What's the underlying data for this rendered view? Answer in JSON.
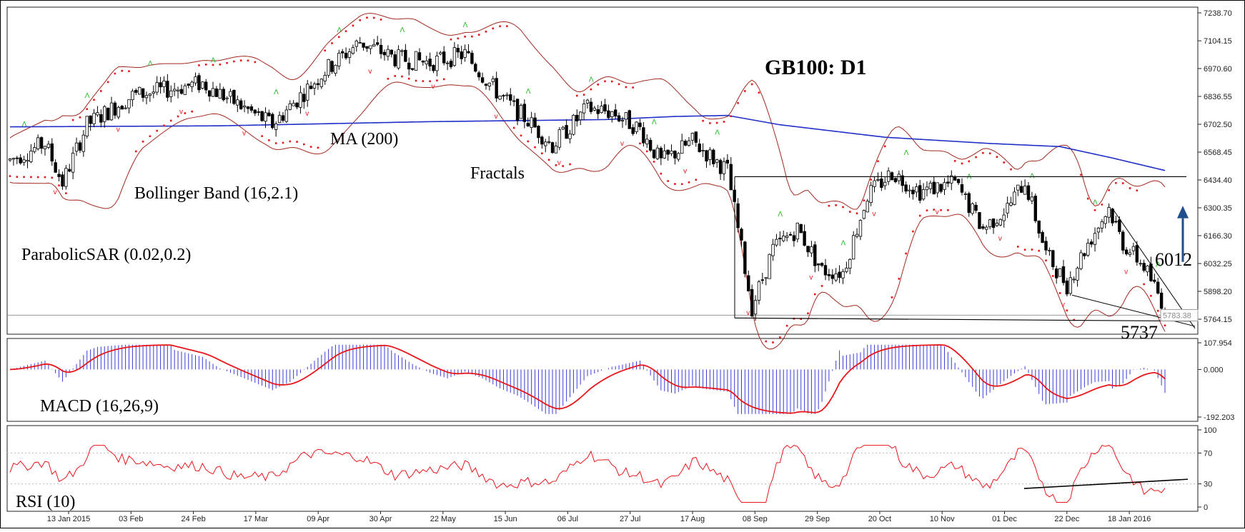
{
  "chart_data": [
    {
      "type": "candlestick",
      "panel": "price",
      "title": "GB100: D1",
      "y_ticks": [
        "7238.70",
        "7104.15",
        "6970.60",
        "6836.55",
        "6702.50",
        "6568.45",
        "6434.40",
        "6300.35",
        "6166.30",
        "6032.25",
        "5898.20",
        "5764.15"
      ],
      "ylim": [
        5700,
        7238.7
      ],
      "current_price_label": "5783.38",
      "x_dates": [
        "13 Jan 2015",
        "03 Feb",
        "24 Feb",
        "17 Mar",
        "09 Apr",
        "30 Apr",
        "22 May",
        "15 Jun",
        "06 Jul",
        "27 Jul",
        "17 Aug",
        "08 Sep",
        "29 Sep",
        "20 Oct",
        "10 Nov",
        "01 Dec",
        "22 Dec",
        "18 Jan 2016"
      ],
      "indicator_labels": {
        "ma": "MA (200)",
        "bollinger": "Bollinger Band (16,2.1)",
        "fractals": "Fractals",
        "psar": "ParabolicSAR (0.02,0.2)"
      },
      "annotations": {
        "resistance_level": "6012",
        "support_level": "5737"
      },
      "colors": {
        "ma": "#1f2fc8",
        "bollinger": "#a0281e",
        "psar": "#e8161a",
        "fractal_up": "#23b523",
        "fractal_down": "#e8161a",
        "arrow": "#1f4e8c"
      }
    },
    {
      "type": "histogram",
      "panel": "macd",
      "label": "MACD (16,26,9)",
      "y_ticks": [
        "107.954",
        "0.000",
        "-192.203"
      ],
      "ylim": [
        -192.203,
        107.954
      ],
      "colors": {
        "histogram": "#3b3bd9",
        "signal": "#e8161a"
      }
    },
    {
      "type": "line",
      "panel": "rsi",
      "label": "RSI (10)",
      "y_ticks": [
        "100",
        "70",
        "30",
        "0"
      ],
      "ylim": [
        0,
        100
      ],
      "levels": [
        70,
        30
      ],
      "colors": {
        "line": "#e8161a",
        "trend": "#000000"
      }
    }
  ]
}
